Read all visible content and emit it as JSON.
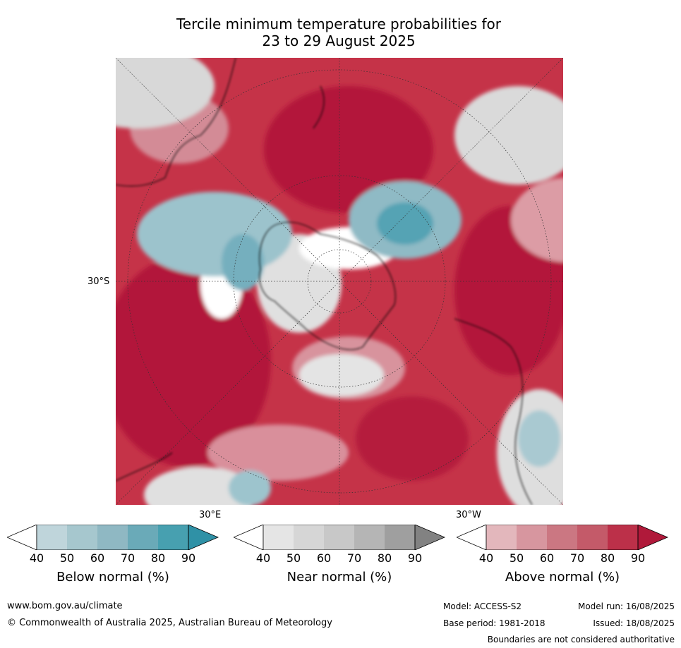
{
  "title_line1": "Tercile minimum temperature probabilities for",
  "title_line2": "23 to 29 August 2025",
  "map": {
    "lat_label": "30°S",
    "lon_label_east": "30°E",
    "lon_label_west": "30°W",
    "region": "Southern Hemisphere polar stereographic"
  },
  "colorbars": [
    {
      "label": "Below normal (%)",
      "ticks": [
        "40",
        "50",
        "60",
        "70",
        "80",
        "90"
      ],
      "colors": [
        "#ffffff",
        "#bfd5db",
        "#a6c7ce",
        "#8fb8c3",
        "#6aaab8",
        "#47a0b0",
        "#2f91a6"
      ]
    },
    {
      "label": "Near normal (%)",
      "ticks": [
        "40",
        "50",
        "60",
        "70",
        "80",
        "90"
      ],
      "colors": [
        "#ffffff",
        "#e5e5e5",
        "#d6d6d6",
        "#c8c8c8",
        "#b5b5b5",
        "#9f9f9f",
        "#828282"
      ]
    },
    {
      "label": "Above normal (%)",
      "ticks": [
        "40",
        "50",
        "60",
        "70",
        "80",
        "90"
      ],
      "colors": [
        "#ffffff",
        "#e3b7bc",
        "#d7969f",
        "#cb7782",
        "#c45a69",
        "#bc3049",
        "#b0193a"
      ]
    }
  ],
  "footer": {
    "website": "www.bom.gov.au/climate",
    "copyright": "© Commonwealth of Australia 2025, Australian Bureau of Meteorology",
    "model": "Model: ACCESS-S2",
    "model_run": "Model run: 16/08/2025",
    "base_period": "Base period: 1981-2018",
    "issued": "Issued: 18/08/2025",
    "disclaimer": "Boundaries are not considered authoritative"
  }
}
